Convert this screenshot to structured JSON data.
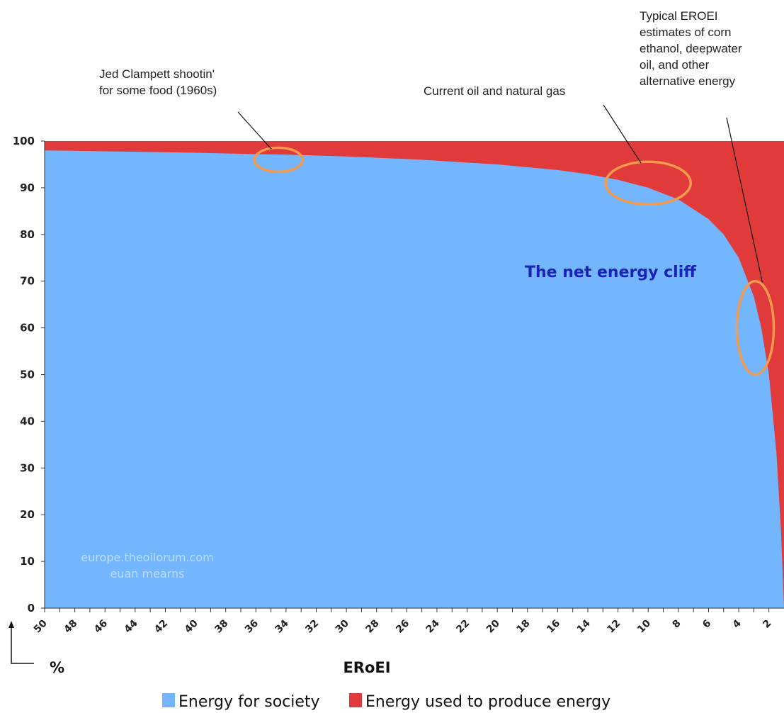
{
  "colors": {
    "society": "#74b6fe",
    "produce": "#e03a3a",
    "highlight": "#f59a4b",
    "title": "#1a22b8",
    "watermark": "#b9dcff"
  },
  "chart_data": {
    "type": "area",
    "title": "The net energy cliff",
    "xlabel": "ERoEI",
    "ylabel": "%",
    "x_reversed": true,
    "xlim": [
      50,
      1
    ],
    "ylim": [
      0,
      100
    ],
    "x_ticks": [
      50,
      48,
      46,
      44,
      42,
      40,
      38,
      36,
      34,
      32,
      30,
      28,
      26,
      24,
      22,
      20,
      18,
      16,
      14,
      12,
      10,
      8,
      6,
      4,
      2
    ],
    "y_ticks": [
      0,
      10,
      20,
      30,
      40,
      50,
      60,
      70,
      80,
      90,
      100
    ],
    "series": [
      {
        "name": "Energy for society",
        "formula": "100*(1-1/x)",
        "x_samples": [
          50,
          48,
          40,
          36,
          34,
          30,
          25,
          20,
          16,
          14,
          12,
          10,
          8,
          6,
          5,
          4,
          3,
          2.5,
          2,
          1.5,
          1.2
        ],
        "values": [
          98,
          97.9,
          97.5,
          97.2,
          97.1,
          96.7,
          96,
          95,
          93.8,
          92.9,
          91.7,
          90,
          87.5,
          83.3,
          80,
          75,
          66.7,
          60,
          50,
          33.3,
          16.7
        ]
      },
      {
        "name": "Energy used to produce energy",
        "formula": "100/x",
        "x_samples": [
          50,
          48,
          40,
          36,
          34,
          30,
          25,
          20,
          16,
          14,
          12,
          10,
          8,
          6,
          5,
          4,
          3,
          2.5,
          2,
          1.5,
          1.2
        ],
        "values": [
          2,
          2.1,
          2.5,
          2.8,
          2.9,
          3.3,
          4,
          5,
          6.2,
          7.1,
          8.3,
          10,
          12.5,
          16.7,
          20,
          25,
          33.3,
          40,
          50,
          66.7,
          83.3
        ]
      }
    ],
    "annotations": [
      {
        "lines": [
          "Jed Clampett shootin'",
          "for some food (1960s)"
        ],
        "x": 34.5,
        "y": 96
      },
      {
        "lines": [
          "Current oil and natural gas"
        ],
        "x": 10,
        "y": 91
      },
      {
        "lines": [
          "Typical EROEI",
          "estimates of corn",
          "ethanol, deepwater",
          "oil, and other",
          "alternative energy"
        ],
        "x": 2.9,
        "y": 60
      }
    ],
    "watermark": [
      "europe.theoilorum.com",
      "euan mearns"
    ],
    "legend": {
      "position": "bottom",
      "entries": [
        "Energy for society",
        "Energy used to produce energy"
      ]
    }
  }
}
